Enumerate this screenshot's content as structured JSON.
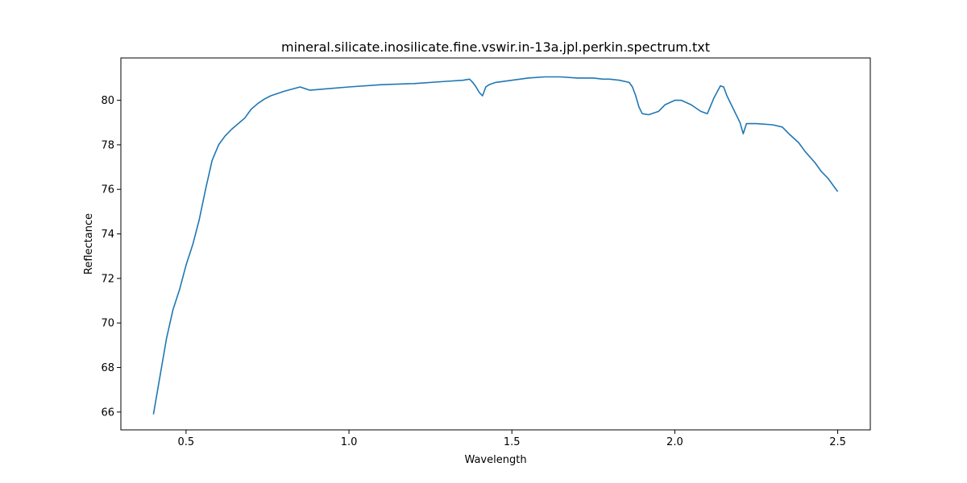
{
  "chart_data": {
    "type": "line",
    "title": "mineral.silicate.inosilicate.fine.vswir.in-13a.jpl.perkin.spectrum.txt",
    "xlabel": "Wavelength",
    "ylabel": "Reflectance",
    "xlim": [
      0.3,
      2.6
    ],
    "ylim": [
      65.2,
      81.9
    ],
    "xticks": [
      0.5,
      1.0,
      1.5,
      2.0,
      2.5
    ],
    "xtick_labels": [
      "0.5",
      "1.0",
      "1.5",
      "2.0",
      "2.5"
    ],
    "yticks": [
      66,
      68,
      70,
      72,
      74,
      76,
      78,
      80
    ],
    "ytick_labels": [
      "66",
      "68",
      "70",
      "72",
      "74",
      "76",
      "78",
      "80"
    ],
    "grid": false,
    "color": "#1f77b4",
    "series": [
      {
        "x": [
          0.4,
          0.42,
          0.44,
          0.46,
          0.48,
          0.5,
          0.52,
          0.54,
          0.56,
          0.58,
          0.6,
          0.62,
          0.64,
          0.66,
          0.68,
          0.7,
          0.72,
          0.74,
          0.76,
          0.78,
          0.8,
          0.85,
          0.88,
          0.92,
          1.0,
          1.1,
          1.2,
          1.3,
          1.35,
          1.37,
          1.38,
          1.39,
          1.4,
          1.41,
          1.42,
          1.43,
          1.45,
          1.5,
          1.55,
          1.6,
          1.65,
          1.7,
          1.75,
          1.78,
          1.8,
          1.83,
          1.86,
          1.87,
          1.88,
          1.89,
          1.9,
          1.92,
          1.95,
          1.97,
          2.0,
          2.02,
          2.05,
          2.08,
          2.1,
          2.12,
          2.14,
          2.15,
          2.16,
          2.18,
          2.2,
          2.21,
          2.22,
          2.25,
          2.3,
          2.33,
          2.35,
          2.38,
          2.4,
          2.43,
          2.45,
          2.47,
          2.49,
          2.5
        ],
        "y": [
          65.9,
          67.6,
          69.3,
          70.6,
          71.5,
          72.6,
          73.5,
          74.6,
          76.0,
          77.3,
          78.0,
          78.4,
          78.7,
          78.95,
          79.2,
          79.6,
          79.85,
          80.05,
          80.2,
          80.3,
          80.4,
          80.6,
          80.45,
          80.5,
          80.6,
          80.7,
          80.75,
          80.85,
          80.9,
          80.95,
          80.8,
          80.6,
          80.35,
          80.2,
          80.6,
          80.7,
          80.8,
          80.9,
          81.0,
          81.05,
          81.05,
          81.0,
          81.0,
          80.95,
          80.95,
          80.9,
          80.8,
          80.6,
          80.2,
          79.7,
          79.4,
          79.35,
          79.5,
          79.8,
          80.0,
          80.0,
          79.8,
          79.5,
          79.4,
          80.1,
          80.65,
          80.6,
          80.2,
          79.6,
          79.0,
          78.5,
          78.95,
          78.95,
          78.9,
          78.8,
          78.5,
          78.1,
          77.7,
          77.2,
          76.8,
          76.5,
          76.1,
          75.9
        ]
      }
    ]
  }
}
